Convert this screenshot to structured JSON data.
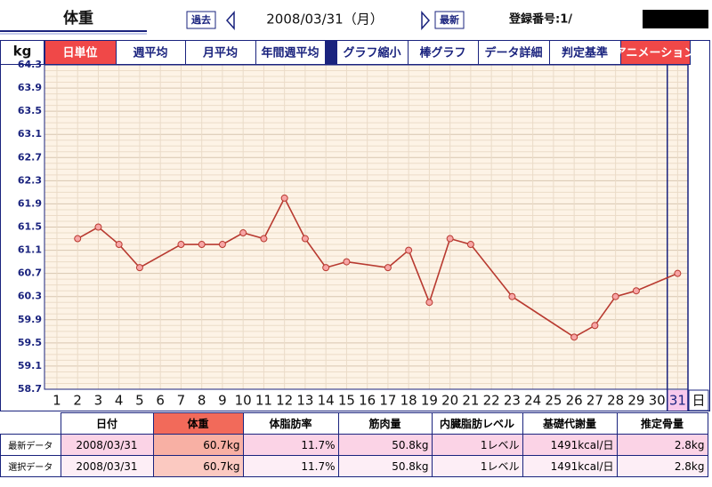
{
  "header": {
    "title": "体重",
    "prev_button": "過去",
    "date": "2008/03/31（月）",
    "latest_button": "最新",
    "registration": "登録番号:1/"
  },
  "toolbar": {
    "unit": "kg",
    "buttons": [
      "日単位",
      "週平均",
      "月平均",
      "年間週平均",
      "グラフ縮小",
      "棒グラフ",
      "データ詳細",
      "判定基準",
      "アニメーション"
    ],
    "active_buttons": [
      0,
      8
    ]
  },
  "chart_data": {
    "type": "line",
    "x": [
      2,
      3,
      4,
      5,
      7,
      8,
      9,
      10,
      11,
      12,
      13,
      14,
      15,
      17,
      18,
      19,
      20,
      21,
      23,
      26,
      27,
      28,
      29,
      31
    ],
    "series": [
      {
        "color": "#b83a30",
        "values": [
          61.3,
          61.5,
          61.2,
          60.8,
          61.2,
          61.2,
          61.2,
          61.4,
          61.3,
          62.0,
          61.3,
          60.8,
          60.9,
          60.8,
          61.1,
          60.2,
          61.3,
          61.2,
          60.3,
          59.6,
          59.8,
          60.3,
          60.4,
          60.7
        ]
      }
    ],
    "xlim": [
      0.4,
      31.5
    ],
    "xticks": [
      1,
      2,
      3,
      4,
      5,
      6,
      7,
      8,
      9,
      10,
      11,
      12,
      13,
      14,
      15,
      16,
      17,
      18,
      19,
      20,
      21,
      22,
      23,
      24,
      25,
      26,
      27,
      28,
      29,
      30,
      31
    ],
    "ylim": [
      58.7,
      64.3
    ],
    "yticks": [
      58.7,
      59.1,
      59.5,
      59.9,
      60.3,
      60.7,
      61.1,
      61.5,
      61.9,
      62.3,
      62.7,
      63.1,
      63.5,
      63.9,
      64.3
    ],
    "x_unit": "日",
    "selected_x": 31,
    "grid": true
  },
  "table": {
    "header": [
      "日付",
      "体重",
      "体脂肪率",
      "筋肉量",
      "内臓脂肪レベル",
      "基礎代謝量",
      "推定骨量"
    ],
    "rows": [
      [
        "最新データ",
        "2008/03/31",
        "60.7kg",
        "11.7%",
        "50.8kg",
        "1レベル",
        "1491kcal/日",
        "2.8kg"
      ],
      [
        "選択データ",
        "2008/03/31",
        "60.7kg",
        "11.7%",
        "50.8kg",
        "1レベル",
        "1491kcal/日",
        "2.8kg"
      ]
    ]
  }
}
